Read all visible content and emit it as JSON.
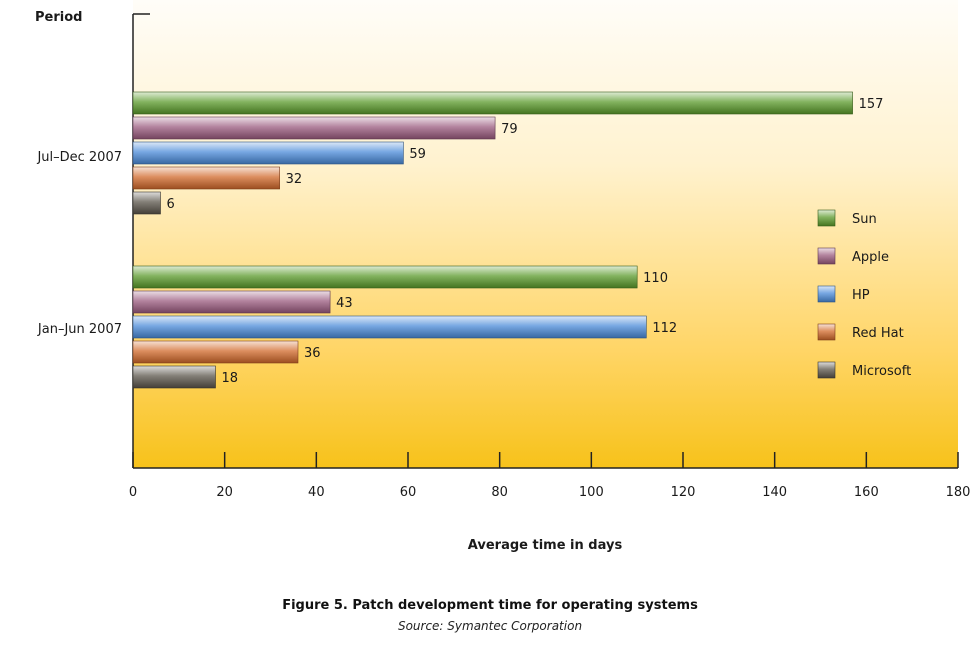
{
  "chart_data": {
    "type": "bar",
    "orientation": "horizontal",
    "title": "Figure 5. Patch development time for operating systems",
    "subtitle": "Source: Symantec Corporation",
    "ylabel": "Period",
    "xlabel": "Average time in days",
    "categories": [
      "Jul–Dec 2007",
      "Jan–Jun 2007"
    ],
    "series": [
      {
        "name": "Sun",
        "values": [
          157,
          110
        ],
        "color": "#5a9a2a"
      },
      {
        "name": "Apple",
        "values": [
          79,
          43
        ],
        "color": "#9a5a7e"
      },
      {
        "name": "HP",
        "values": [
          59,
          112
        ],
        "color": "#4a8ad8"
      },
      {
        "name": "Red Hat",
        "values": [
          32,
          36
        ],
        "color": "#d0682a"
      },
      {
        "name": "Microsoft",
        "values": [
          6,
          18
        ],
        "color": "#5a544a"
      }
    ],
    "xlim": [
      0,
      180
    ],
    "xticks": [
      "0",
      "20",
      "40",
      "60",
      "80",
      "100",
      "120",
      "140",
      "160",
      "180"
    ],
    "legend": "right",
    "grid": false
  }
}
